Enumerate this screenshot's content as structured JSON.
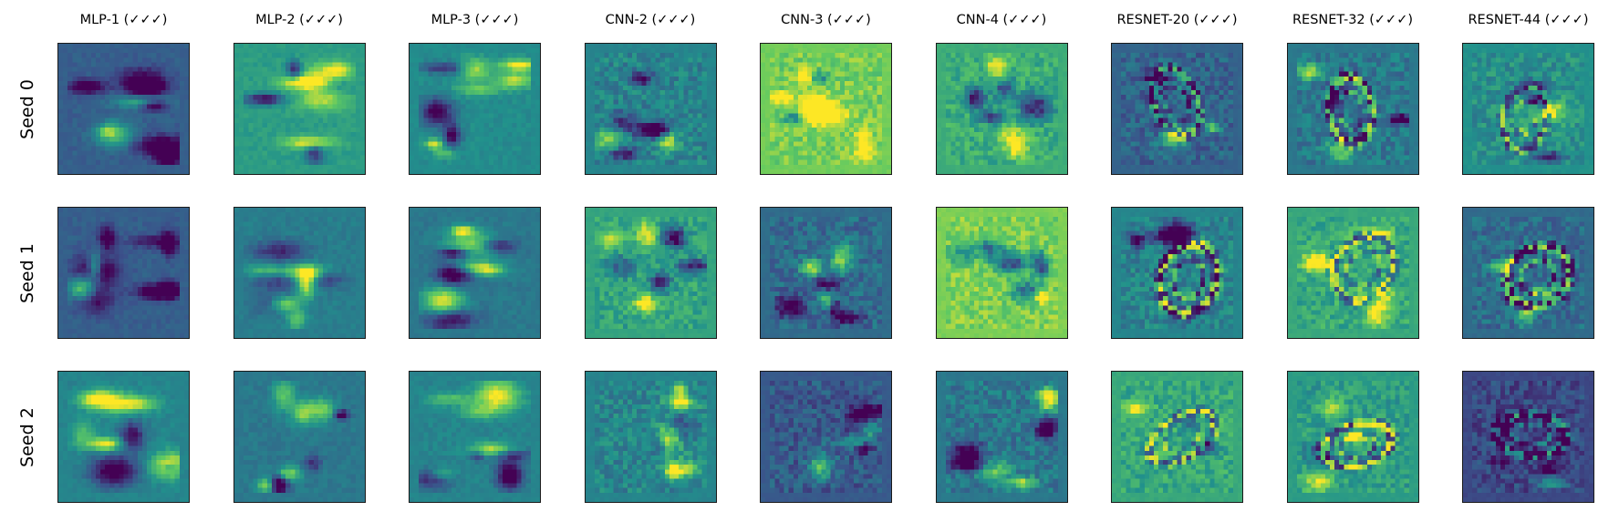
{
  "figure": {
    "columns": [
      "MLP-1 (✓✓✓)",
      "MLP-2 (✓✓✓)",
      "MLP-3 (✓✓✓)",
      "CNN-2 (✓✓✓)",
      "CNN-3 (✓✓✓)",
      "CNN-4 (✓✓✓)",
      "RESNET-20 (✓✓✓)",
      "RESNET-32 (✓✓✓)",
      "RESNET-44 (✓✓✓)"
    ],
    "rows": [
      "Seed 0",
      "Seed 1",
      "Seed 2"
    ],
    "colormap": [
      "#440154",
      "#3b528b",
      "#21918c",
      "#5ec962",
      "#fde725"
    ],
    "background_tones": [
      [
        0.3,
        0.55,
        0.48,
        0.45,
        0.78,
        0.62,
        0.32,
        0.4,
        0.5
      ],
      [
        0.3,
        0.42,
        0.4,
        0.58,
        0.35,
        0.8,
        0.45,
        0.6,
        0.35
      ],
      [
        0.45,
        0.4,
        0.45,
        0.45,
        0.28,
        0.4,
        0.6,
        0.55,
        0.22
      ]
    ],
    "pattern_style": {
      "MLP": "blob",
      "CNN": "speckle",
      "RESNET": "ring"
    }
  }
}
